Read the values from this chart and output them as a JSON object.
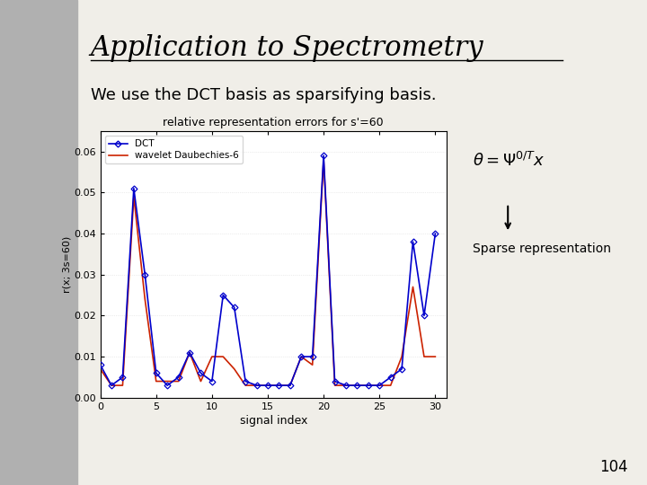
{
  "title": "Application to Spectrometry",
  "subtitle": "We use the DCT basis as sparsifying basis.",
  "plot_title": "relative representation errors for s'=60",
  "xlabel": "signal index",
  "ylabel": "r(x; 3s=60)",
  "sparse_label": "Sparse representation",
  "page_number": "104",
  "legend_dct": "DCT",
  "legend_wavelet": "wavelet Daubechies-6",
  "dct_color": "#0000CC",
  "wavelet_color": "#CC2200",
  "bg_color": "#F0EEE8",
  "xlim": [
    0,
    31
  ],
  "ylim": [
    0,
    0.065
  ],
  "yticks": [
    0,
    0.01,
    0.02,
    0.03,
    0.04,
    0.05,
    0.06
  ],
  "xticks": [
    0,
    5,
    10,
    15,
    20,
    25,
    30
  ],
  "x_dct": [
    0,
    1,
    2,
    3,
    4,
    5,
    6,
    7,
    8,
    9,
    10,
    11,
    12,
    13,
    14,
    15,
    16,
    17,
    18,
    19,
    20,
    21,
    22,
    23,
    24,
    25,
    26,
    27,
    28,
    29,
    30
  ],
  "y_dct": [
    0.008,
    0.003,
    0.005,
    0.051,
    0.03,
    0.006,
    0.003,
    0.005,
    0.011,
    0.006,
    0.004,
    0.025,
    0.022,
    0.004,
    0.003,
    0.003,
    0.003,
    0.003,
    0.01,
    0.01,
    0.059,
    0.004,
    0.003,
    0.003,
    0.003,
    0.003,
    0.005,
    0.007,
    0.038,
    0.02,
    0.04
  ],
  "x_wav": [
    0,
    1,
    2,
    3,
    4,
    5,
    6,
    7,
    8,
    9,
    10,
    11,
    12,
    13,
    14,
    15,
    16,
    17,
    18,
    19,
    20,
    21,
    22,
    23,
    24,
    25,
    26,
    27,
    28,
    29,
    30
  ],
  "y_wav": [
    0.007,
    0.003,
    0.003,
    0.049,
    0.024,
    0.004,
    0.004,
    0.004,
    0.011,
    0.004,
    0.01,
    0.01,
    0.007,
    0.003,
    0.003,
    0.003,
    0.003,
    0.003,
    0.01,
    0.008,
    0.058,
    0.003,
    0.003,
    0.003,
    0.003,
    0.003,
    0.003,
    0.01,
    0.027,
    0.01,
    0.01
  ],
  "left_bg_color": "#C8C8C8",
  "formula_text": "theta = Psi^(0/T) x"
}
